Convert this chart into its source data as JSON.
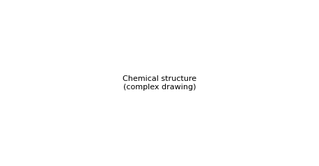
{
  "bg_color": "#ffffff",
  "line_color": "#000000",
  "line_width": 1.5,
  "figsize": [
    4.58,
    2.38
  ],
  "dpi": 100
}
